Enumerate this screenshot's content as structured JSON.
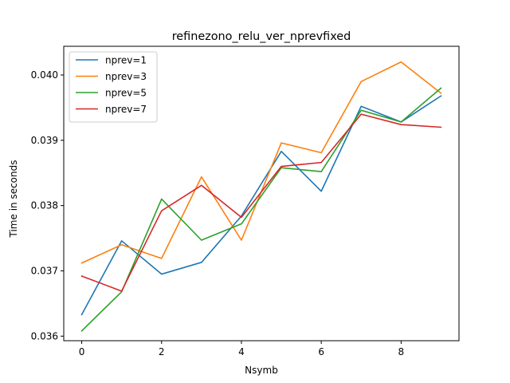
{
  "chart_data": {
    "type": "line",
    "title": "refinezono_relu_ver_nprevfixed",
    "xlabel": "Nsymb",
    "ylabel": "Time in seconds",
    "x": [
      0,
      1,
      2,
      3,
      4,
      5,
      6,
      7,
      8,
      9
    ],
    "xlim": [
      -0.45,
      9.45
    ],
    "ylim": [
      0.03593,
      0.04044
    ],
    "xticks": [
      0,
      2,
      4,
      6,
      8
    ],
    "xtick_labels": [
      "0",
      "2",
      "4",
      "6",
      "8"
    ],
    "yticks": [
      0.036,
      0.037,
      0.038,
      0.039,
      0.04
    ],
    "ytick_labels": [
      "0.036",
      "0.037",
      "0.038",
      "0.039",
      "0.040"
    ],
    "grid": false,
    "legend_position": "top-left",
    "series": [
      {
        "name": "nprev=1",
        "color": "#1f77b4",
        "values": [
          0.03633,
          0.03746,
          0.03695,
          0.03713,
          0.03784,
          0.03883,
          0.03822,
          0.03952,
          0.03928,
          0.03968
        ]
      },
      {
        "name": "nprev=3",
        "color": "#ff7f0e",
        "values": [
          0.03712,
          0.0374,
          0.03719,
          0.03844,
          0.03747,
          0.03896,
          0.03881,
          0.0399,
          0.0402,
          0.03972
        ]
      },
      {
        "name": "nprev=5",
        "color": "#2ca02c",
        "values": [
          0.03608,
          0.03668,
          0.0381,
          0.03747,
          0.03772,
          0.03858,
          0.03852,
          0.03946,
          0.03928,
          0.0398
        ]
      },
      {
        "name": "nprev=7",
        "color": "#d62728",
        "values": [
          0.03692,
          0.03669,
          0.03792,
          0.03831,
          0.03782,
          0.0386,
          0.03866,
          0.0394,
          0.03924,
          0.0392
        ]
      }
    ]
  }
}
